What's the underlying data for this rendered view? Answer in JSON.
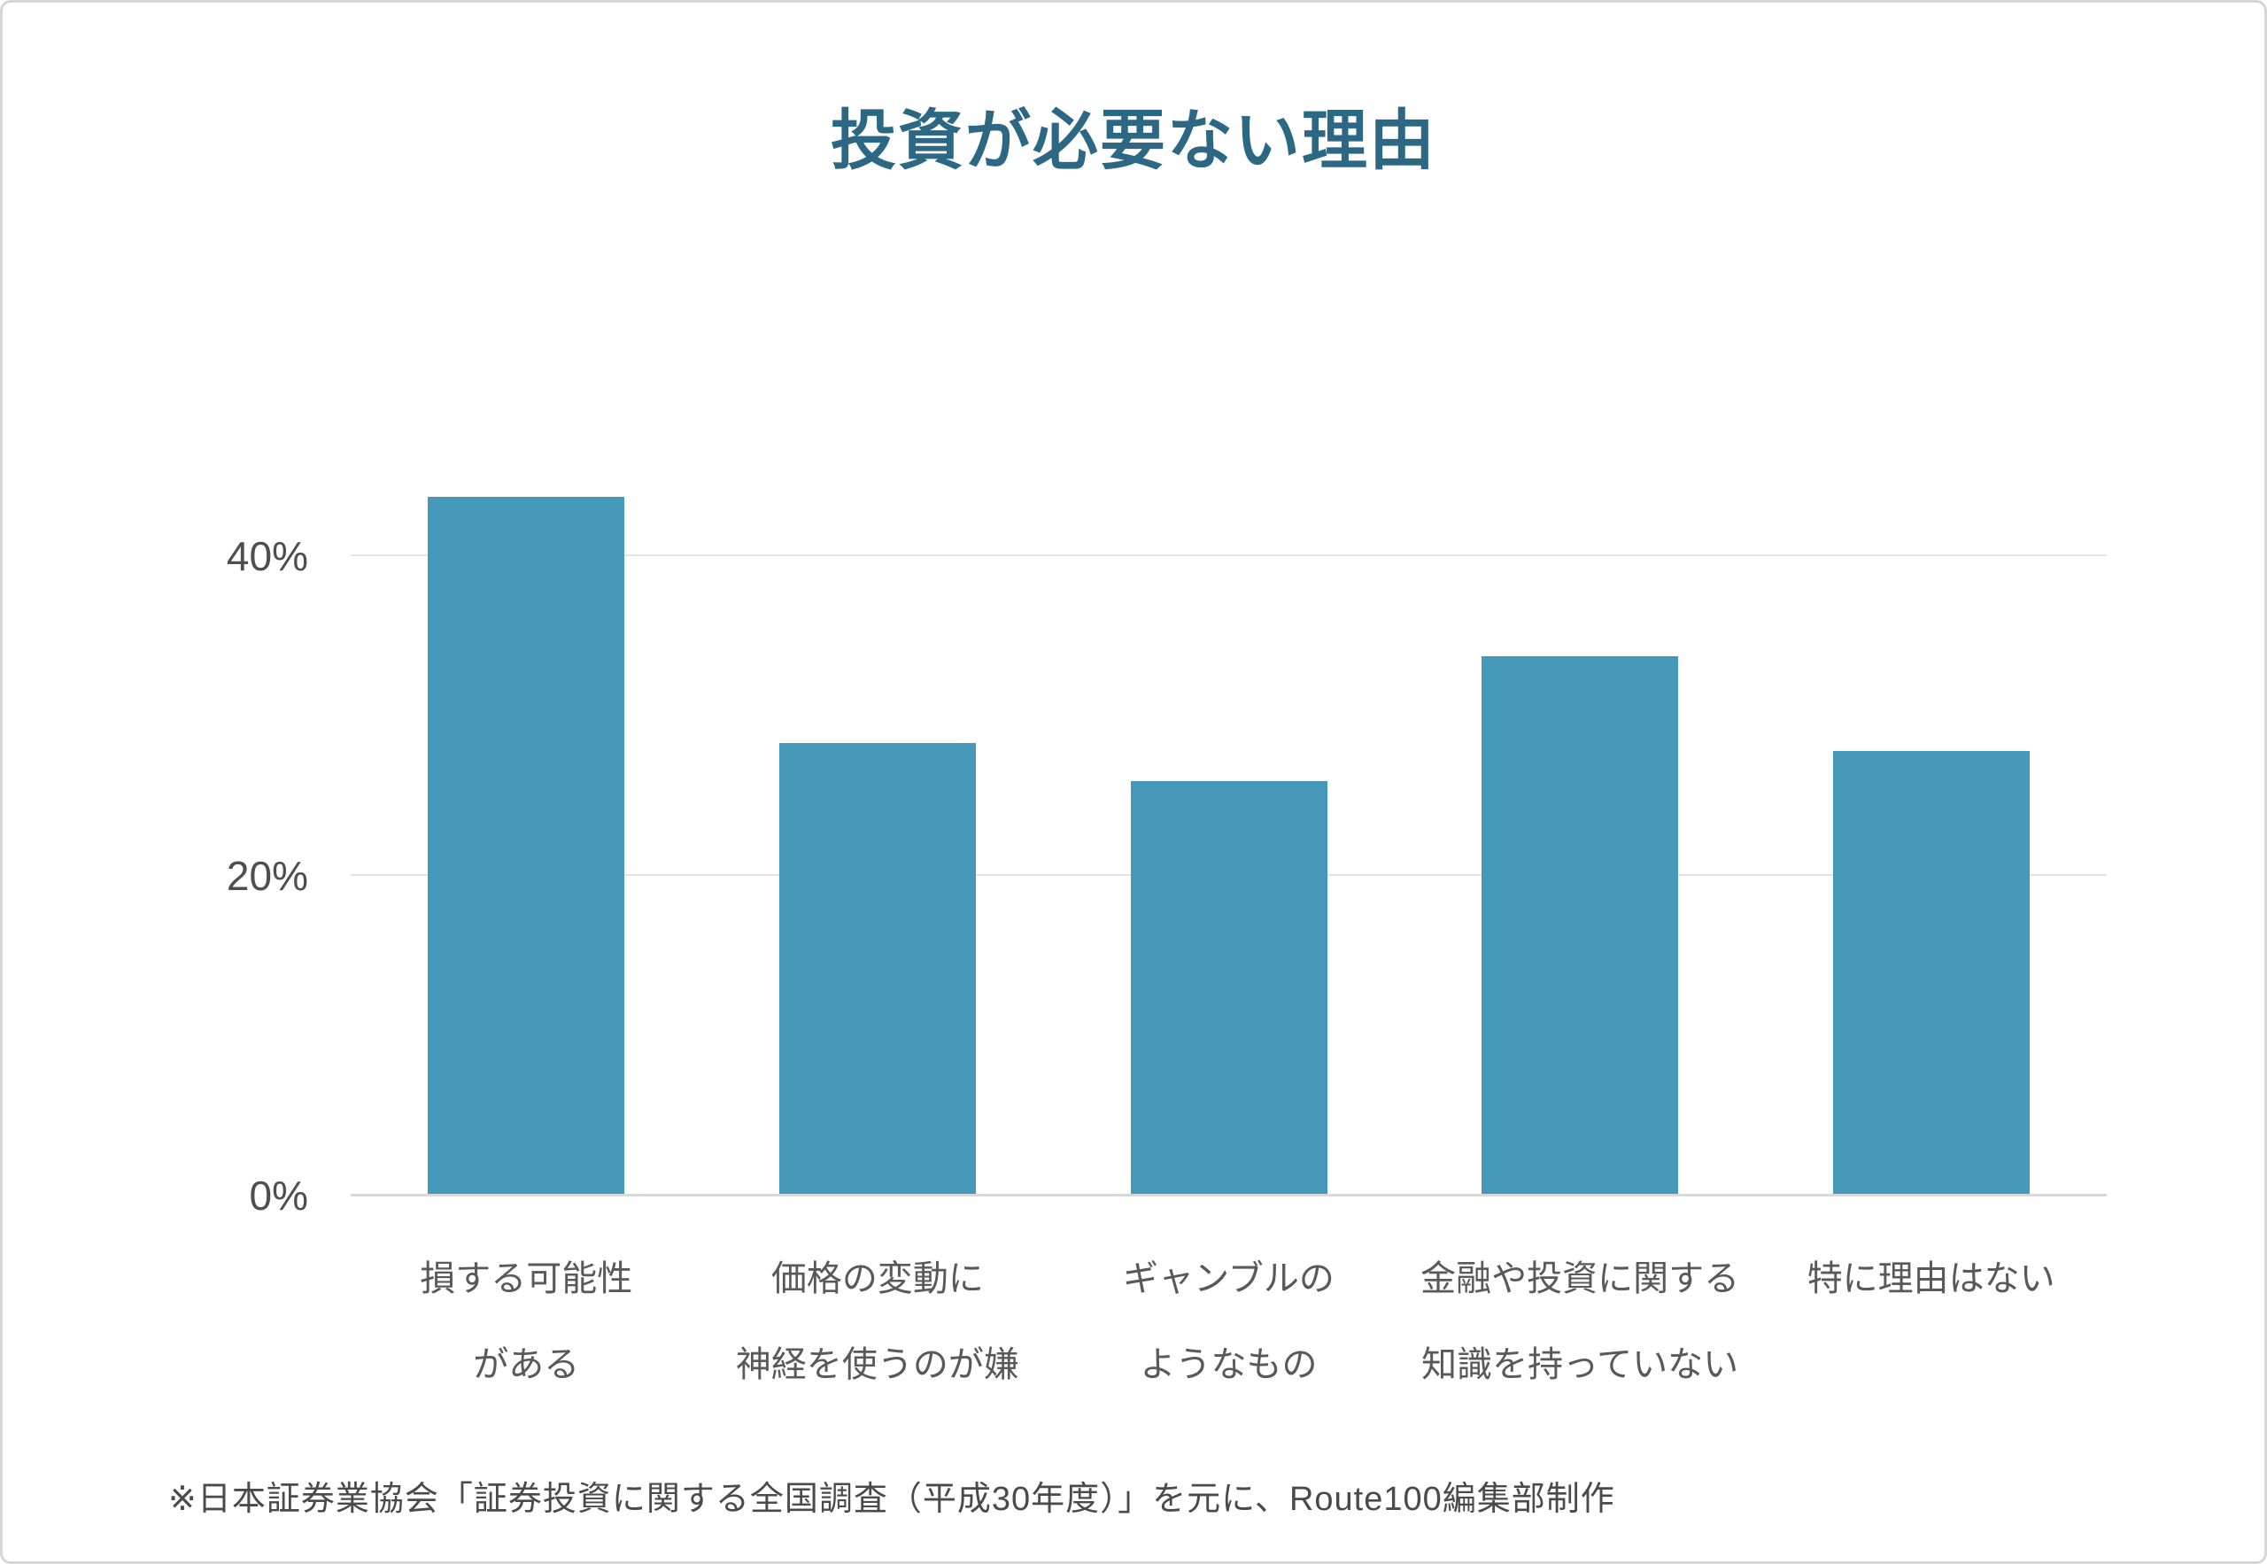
{
  "page": {
    "title": "投資が必要ない理由",
    "footnote": "※日本証券業協会「証券投資に関する全国調査（平成30年度）」を元に、Route100編集部制作"
  },
  "colors": {
    "bar": "#4598b8",
    "title": "#2c6884",
    "gridline": "#e4e4e4",
    "axis_line": "#d9d9d9",
    "tick_text": "#4e4e4e",
    "category_text": "#595959",
    "footnote_text": "#4a4a4a"
  },
  "chart_data": {
    "type": "bar",
    "title": "投資が必要ない理由",
    "categories": [
      "損する可能性がある",
      "価格の変動に神経を使うのが嫌",
      "ギャンブルのようなもの",
      "金融や投資に関する知識を持っていない",
      "特に理由はない"
    ],
    "categories_lines": [
      [
        "損する可能性",
        "がある"
      ],
      [
        "価格の変動に",
        "神経を使うのが嫌"
      ],
      [
        "ギャンブルの",
        "ようなもの"
      ],
      [
        "金融や投資に関する",
        "知識を持っていない"
      ],
      [
        "特に理由はない"
      ]
    ],
    "values": [
      43.7,
      28.3,
      25.9,
      33.7,
      27.8
    ],
    "unit": "%",
    "xlabel": "",
    "ylabel": "",
    "yticks": [
      0,
      20,
      40
    ],
    "ytick_labels": [
      "0%",
      "20%",
      "40%"
    ],
    "ylim": [
      0,
      50
    ],
    "grid": true,
    "legend": false,
    "annotation": "※日本証券業協会「証券投資に関する全国調査（平成30年度）」を元に、Route100編集部制作"
  }
}
